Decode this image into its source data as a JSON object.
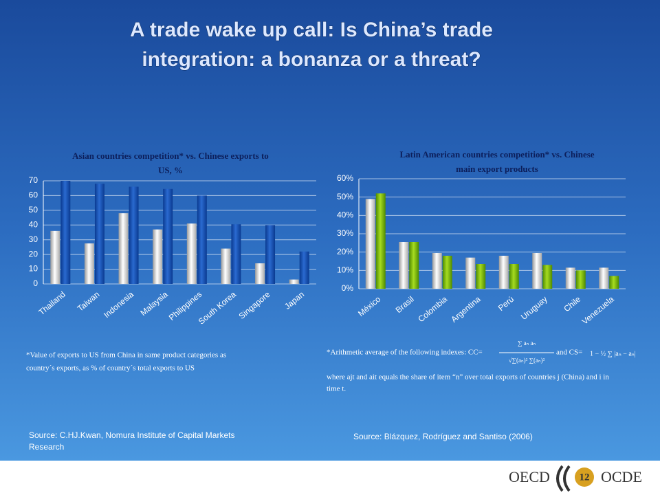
{
  "title": [
    "A trade wake up call: Is China’s trade",
    "integration: a bonanza or a threat?"
  ],
  "chart_data": [
    {
      "type": "bar",
      "title": [
        "Asian countries competition* vs. Chinese exports to",
        "US, %"
      ],
      "categories": [
        "Thailand",
        "Taiwan",
        "Indonesia",
        "Malaysia",
        "Philippines",
        "South Korea",
        "Singapore",
        "Japan"
      ],
      "series": [
        {
          "color": "#c8c8c8",
          "values": [
            36,
            27.5,
            48,
            37,
            41,
            24,
            14,
            3
          ]
        },
        {
          "color": "#1454b4",
          "values": [
            70,
            68,
            66,
            64.5,
            60,
            40.5,
            40,
            22
          ]
        }
      ],
      "ylim": [
        0,
        70
      ],
      "yticks": [
        0,
        10,
        20,
        30,
        40,
        50,
        60,
        70
      ],
      "grid": true
    },
    {
      "type": "bar",
      "title": [
        "Latin American countries competition*  vs. Chinese",
        "main export products"
      ],
      "categories": [
        "México",
        "Brasil",
        "Colombia",
        "Argentina",
        "Perú",
        "Uruguay",
        "Chile",
        "Venezuela"
      ],
      "series": [
        {
          "color": "#c8c8c8",
          "values": [
            49,
            25.5,
            19.5,
            17,
            18,
            19.5,
            11.5,
            11.5
          ]
        },
        {
          "color": "#7ab800",
          "values": [
            52,
            25.5,
            18,
            13.5,
            13.5,
            13,
            10,
            7
          ]
        }
      ],
      "ylim": [
        0,
        60
      ],
      "yticks": [
        {
          "value": 0,
          "label": "0%"
        },
        {
          "value": 10,
          "label": "10%"
        },
        {
          "value": 20,
          "label": "20%"
        },
        {
          "value": 30,
          "label": "30%"
        },
        {
          "value": 40,
          "label": "40%"
        },
        {
          "value": 50,
          "label": "50%"
        },
        {
          "value": 60,
          "label": "60%"
        }
      ],
      "grid": true
    }
  ],
  "notes": {
    "left": [
      "*Value of exports to US from China in same product categories as",
      "country´s exports, as % of country´s total exports to US"
    ],
    "right": {
      "intro": "*Arithmetic average of the following indexes: CC=",
      "cc_numerator": "∑ aₙ aₙ",
      "cc_denominator": "√∑(aₙ)² ∑(aₙ)²",
      "mid": "and CS=",
      "cs": "1 − ½ ∑ |aₙ − aₙ|",
      "lines": [
        "where ajt and ait equals the share of item “n” over total exports of countries j (China) and i in",
        "time t."
      ]
    }
  },
  "sources": {
    "left": [
      "Source: C.HJ.Kwan, Nomura Institute of Capital Markets",
      "Research"
    ],
    "right": "Source: Blázquez, Rodríguez and Santiso (2006)"
  },
  "footer": {
    "left": "OECD",
    "page": "12",
    "right": "OCDE"
  }
}
